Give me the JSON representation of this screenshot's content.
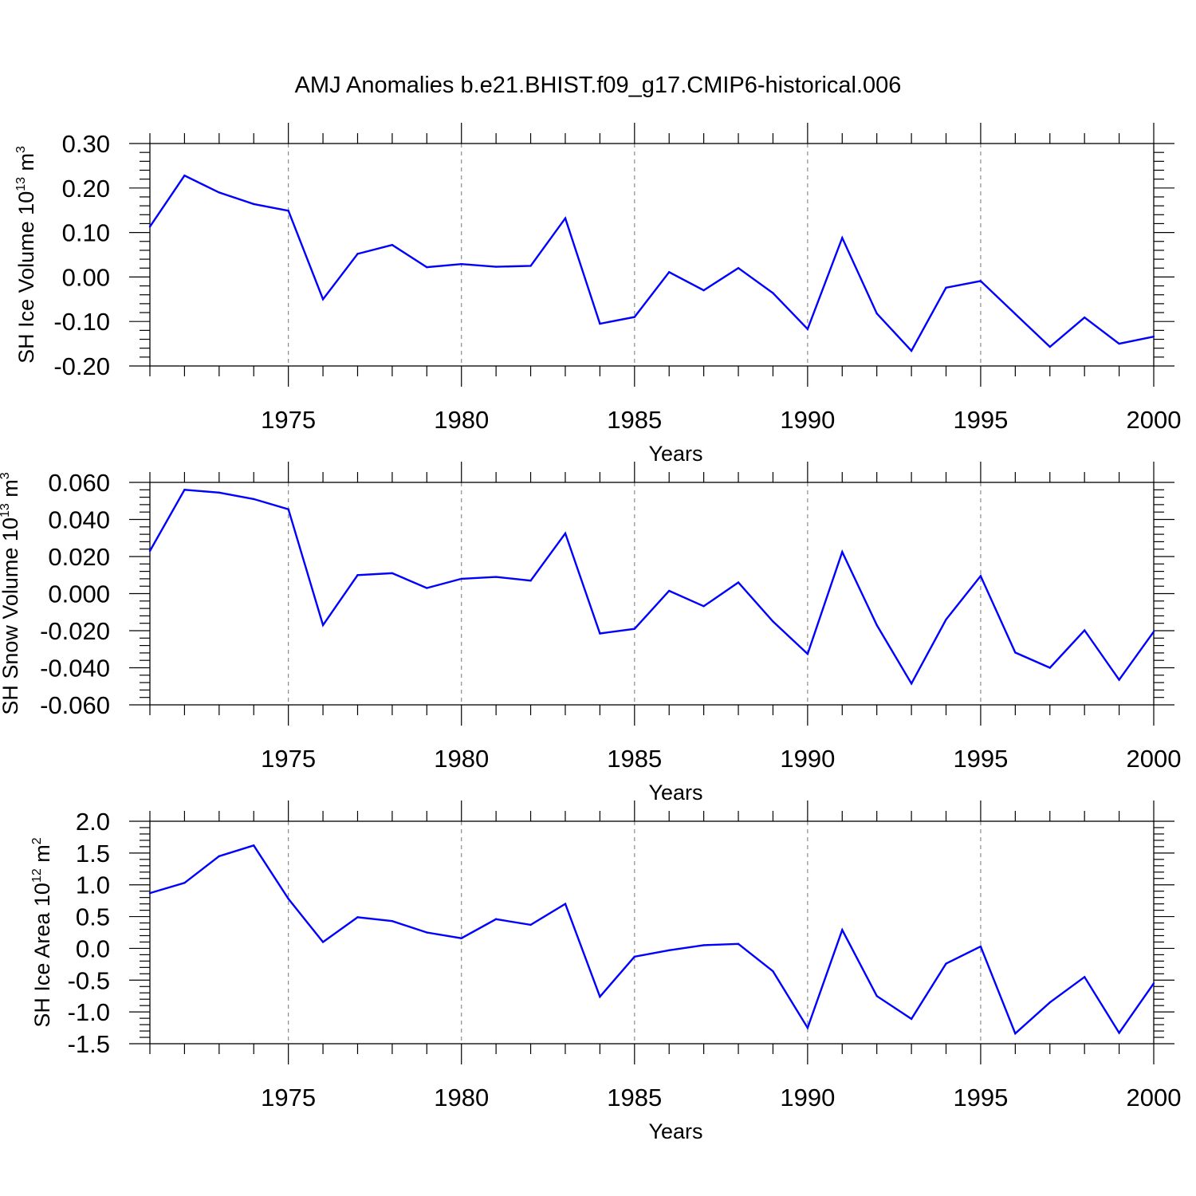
{
  "title": "AMJ Anomalies b.e21.BHIST.f09_g17.CMIP6-historical.006",
  "colors": {
    "series": "#0000ff",
    "axis": "#000000",
    "grid": "#8c8c8c"
  },
  "chart_data": [
    {
      "type": "line",
      "ylabel": {
        "text": "SH Ice Volume 10",
        "sup1": "13",
        "mid": " m",
        "sup2": "3"
      },
      "xlabel": "Years",
      "xlim": [
        1971,
        2000
      ],
      "ylim": [
        -0.2,
        0.3
      ],
      "x_ticks": [
        1975,
        1980,
        1985,
        1990,
        1995,
        2000
      ],
      "y_ticks": [
        0.3,
        0.2,
        0.1,
        0.0,
        -0.1,
        -0.2
      ],
      "y_tick_labels": [
        "0.30",
        "0.20",
        "0.10",
        "0.00",
        "-0.10",
        "-0.20"
      ],
      "grid": "vertical dashed at major x ticks",
      "x": [
        1971,
        1972,
        1973,
        1974,
        1975,
        1976,
        1977,
        1978,
        1979,
        1980,
        1981,
        1982,
        1983,
        1984,
        1985,
        1986,
        1987,
        1988,
        1989,
        1990,
        1991,
        1992,
        1993,
        1994,
        1995,
        1996,
        1997,
        1998,
        1999,
        2000
      ],
      "values": [
        0.113,
        0.228,
        0.19,
        0.164,
        0.149,
        -0.05,
        0.052,
        0.072,
        0.022,
        0.029,
        0.023,
        0.025,
        0.132,
        -0.105,
        -0.09,
        0.011,
        -0.03,
        0.02,
        -0.036,
        -0.117,
        0.088,
        -0.082,
        -0.166,
        -0.024,
        -0.009,
        -0.083,
        -0.157,
        -0.091,
        -0.15,
        -0.134
      ]
    },
    {
      "type": "line",
      "ylabel": {
        "text": "SH Snow Volume 10",
        "sup1": "13",
        "mid": " m",
        "sup2": "3"
      },
      "xlabel": "Years",
      "xlim": [
        1971,
        2000
      ],
      "ylim": [
        -0.06,
        0.06
      ],
      "x_ticks": [
        1975,
        1980,
        1985,
        1990,
        1995,
        2000
      ],
      "y_ticks": [
        0.06,
        0.04,
        0.02,
        0.0,
        -0.02,
        -0.04,
        -0.06
      ],
      "y_tick_labels": [
        "0.060",
        "0.040",
        "0.020",
        "0.000",
        "-0.020",
        "-0.040",
        "-0.060"
      ],
      "grid": "vertical dashed at major x ticks",
      "x": [
        1971,
        1972,
        1973,
        1974,
        1975,
        1976,
        1977,
        1978,
        1979,
        1980,
        1981,
        1982,
        1983,
        1984,
        1985,
        1986,
        1987,
        1988,
        1989,
        1990,
        1991,
        1992,
        1993,
        1994,
        1995,
        1996,
        1997,
        1998,
        1999,
        2000
      ],
      "values": [
        0.023,
        0.056,
        0.0545,
        0.051,
        0.0455,
        -0.017,
        0.01,
        0.011,
        0.003,
        0.008,
        0.009,
        0.007,
        0.0325,
        -0.0215,
        -0.019,
        0.0015,
        -0.0068,
        0.006,
        -0.015,
        -0.0325,
        0.0225,
        -0.017,
        -0.0485,
        -0.014,
        0.0095,
        -0.0318,
        -0.04,
        -0.0198,
        -0.0465,
        -0.0205
      ]
    },
    {
      "type": "line",
      "ylabel": {
        "text": "SH Ice Area 10",
        "sup1": "12",
        "mid": " m",
        "sup2": "2"
      },
      "xlabel": "Years",
      "xlim": [
        1971,
        2000
      ],
      "ylim": [
        -1.5,
        2.0
      ],
      "x_ticks": [
        1975,
        1980,
        1985,
        1990,
        1995,
        2000
      ],
      "y_ticks": [
        2.0,
        1.5,
        1.0,
        0.5,
        0.0,
        -0.5,
        -1.0,
        -1.5
      ],
      "y_tick_labels": [
        "2.0",
        "1.5",
        "1.0",
        "0.5",
        "0.0",
        "-0.5",
        "-1.0",
        "-1.5"
      ],
      "grid": "vertical dashed at major x ticks",
      "x": [
        1971,
        1972,
        1973,
        1974,
        1975,
        1976,
        1977,
        1978,
        1979,
        1980,
        1981,
        1982,
        1983,
        1984,
        1985,
        1986,
        1987,
        1988,
        1989,
        1990,
        1991,
        1992,
        1993,
        1994,
        1995,
        1996,
        1997,
        1998,
        1999,
        2000
      ],
      "values": [
        0.87,
        1.03,
        1.45,
        1.62,
        0.78,
        0.1,
        0.49,
        0.43,
        0.25,
        0.16,
        0.46,
        0.37,
        0.7,
        -0.76,
        -0.13,
        -0.03,
        0.05,
        0.07,
        -0.36,
        -1.25,
        0.29,
        -0.75,
        -1.11,
        -0.24,
        0.03,
        -1.34,
        -0.85,
        -0.45,
        -1.33,
        -0.55
      ]
    }
  ]
}
